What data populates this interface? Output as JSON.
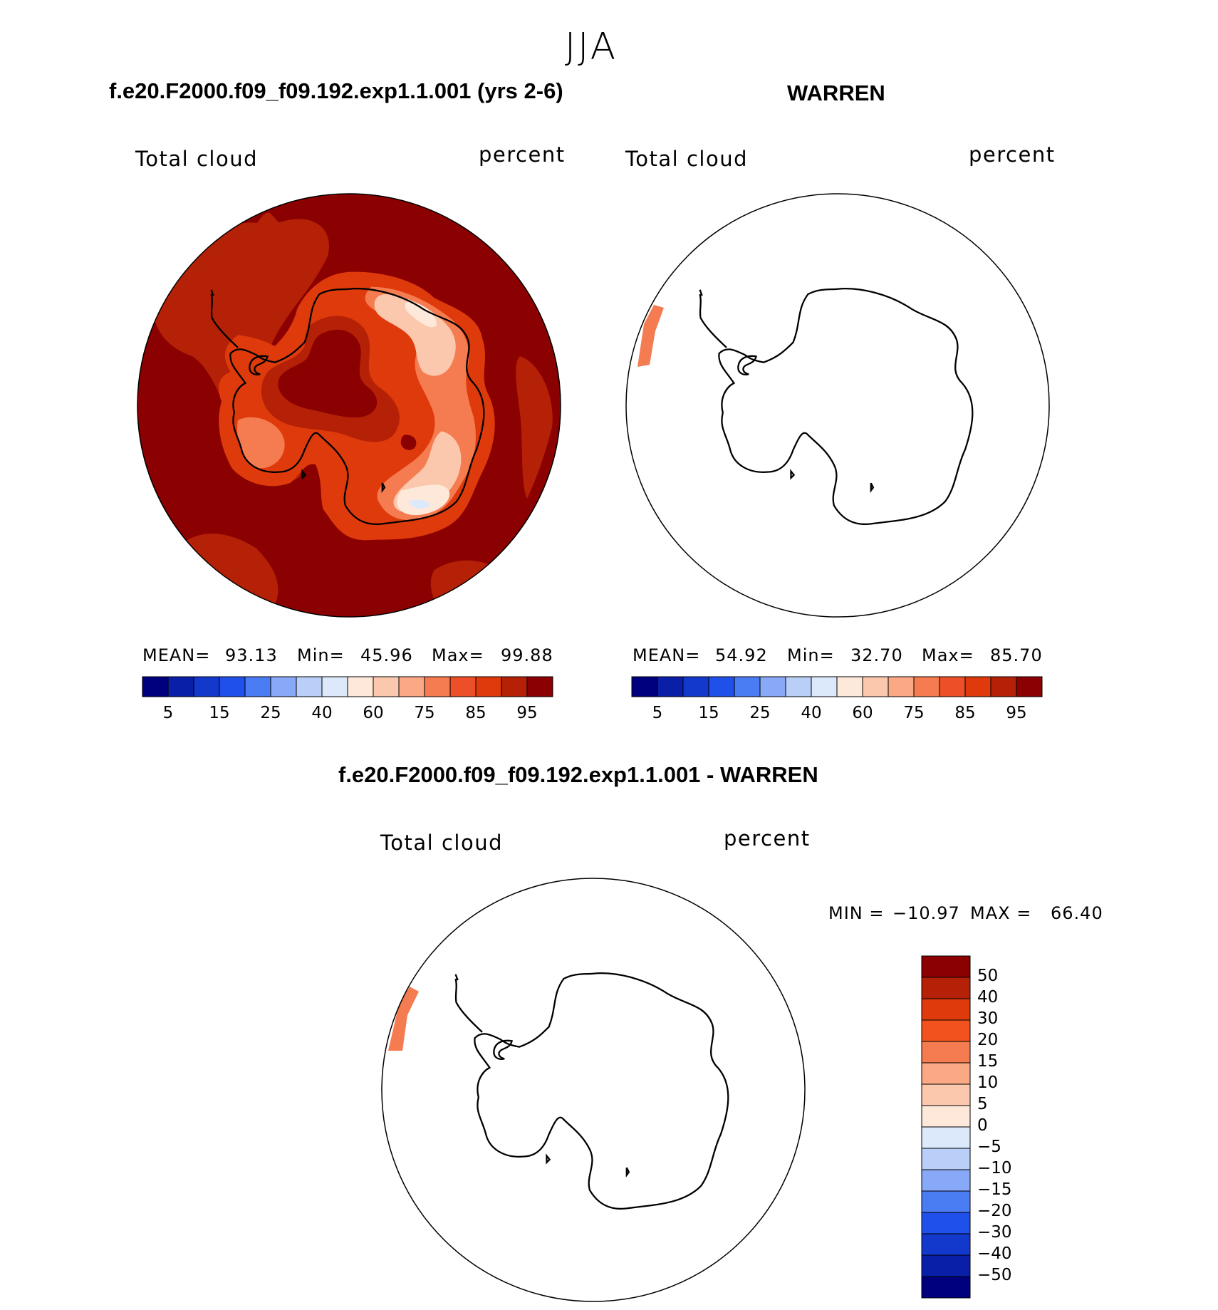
{
  "figure": {
    "season": "JJA"
  },
  "panels": [
    {
      "title": "f.e20.F2000.f09_f09.192.exp1.1.001 (yrs 2-6)",
      "variable": "Total cloud",
      "units": "percent",
      "mean_label": "MEAN=",
      "mean": "93.13",
      "min_label": "Min=",
      "min": "45.96",
      "max_label": "Max=",
      "max": "99.88"
    },
    {
      "title": "WARREN",
      "variable": "Total cloud",
      "units": "percent",
      "mean_label": "MEAN=",
      "mean": "54.92",
      "min_label": "Min=",
      "min": "32.70",
      "max_label": "Max=",
      "max": "85.70"
    }
  ],
  "diff_panel": {
    "title": "f.e20.F2000.f09_f09.192.exp1.1.001 - WARREN",
    "variable": "Total cloud",
    "units": "percent",
    "min_label": "MIN =",
    "min": "−10.97",
    "max_label": "MAX =",
    "max": "66.40"
  },
  "colorbar_abs": {
    "colors": [
      "#00007f",
      "#0a1fa8",
      "#1238cc",
      "#1f51ea",
      "#4a7cf4",
      "#87a9f7",
      "#b9cff7",
      "#dce9fb",
      "#fde8da",
      "#fcc8ad",
      "#fba884",
      "#f57b50",
      "#ed5028",
      "#de3a0c",
      "#b52107",
      "#8b0000"
    ],
    "tick_labels": [
      "5",
      "15",
      "25",
      "40",
      "60",
      "75",
      "85",
      "95"
    ]
  },
  "colorbar_diff": {
    "colors": [
      "#8b0000",
      "#b52107",
      "#de3a0c",
      "#f2531e",
      "#f57b50",
      "#fba884",
      "#fcc8ad",
      "#fde8da",
      "#dce9fb",
      "#b9cff7",
      "#87a9f7",
      "#4a7cf4",
      "#1f51ea",
      "#1238cc",
      "#0a1fa8",
      "#00007f"
    ],
    "tick_labels": [
      "50",
      "40",
      "30",
      "20",
      "15",
      "10",
      "5",
      "0",
      "−5",
      "−10",
      "−15",
      "−20",
      "−30",
      "−40",
      "−50"
    ]
  },
  "map_colors": {
    "ocean_high": "#8b0000",
    "mid": "#b52107",
    "orange": "#de3a0c",
    "light_orange": "#f57b50",
    "peach": "#fcc8ad",
    "cream": "#fde8da",
    "pale_blue": "#dce9fb"
  }
}
